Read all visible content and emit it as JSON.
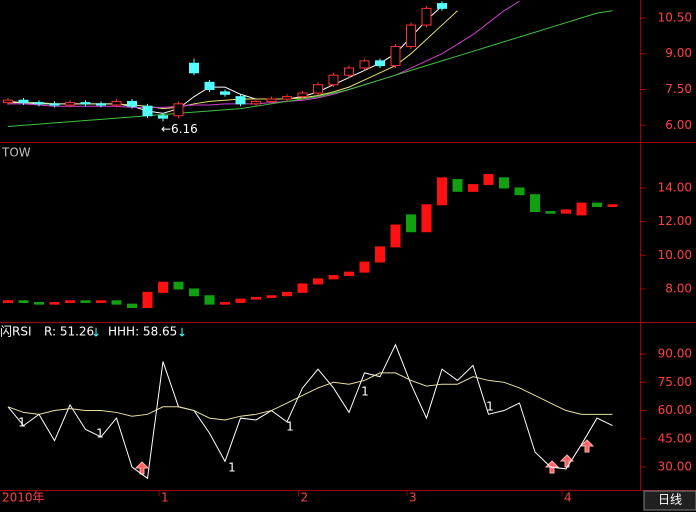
{
  "chart_data": [
    {
      "type": "candlestick",
      "up_color": "#ff3232",
      "down_color": "#54ffff",
      "open": [
        6.95,
        7.05,
        6.95,
        6.9,
        6.85,
        6.95,
        6.9,
        6.85,
        7.0,
        6.8,
        6.4,
        6.4,
        8.6,
        7.8,
        7.4,
        7.2,
        6.9,
        7.0,
        7.1,
        7.2,
        7.35,
        7.7,
        8.1,
        8.4,
        8.7,
        8.5,
        9.3,
        10.2,
        11.1,
        null,
        null,
        null,
        null,
        null,
        null,
        null,
        null,
        null,
        null,
        null
      ],
      "close": [
        7.05,
        6.95,
        6.9,
        6.85,
        6.95,
        6.9,
        6.85,
        7.0,
        6.8,
        6.4,
        6.3,
        6.9,
        8.2,
        7.5,
        7.3,
        6.9,
        7.0,
        7.1,
        7.2,
        7.35,
        7.7,
        8.1,
        8.4,
        8.7,
        8.5,
        9.3,
        10.2,
        10.9,
        10.9,
        null,
        null,
        null,
        null,
        null,
        null,
        null,
        null,
        null,
        null,
        null
      ],
      "high": [
        7.15,
        7.15,
        7.05,
        7.0,
        7.05,
        7.05,
        7.0,
        7.1,
        7.1,
        6.9,
        6.5,
        7.0,
        8.8,
        7.9,
        7.5,
        7.3,
        7.1,
        7.2,
        7.3,
        7.45,
        7.8,
        8.2,
        8.5,
        8.8,
        8.8,
        9.4,
        10.3,
        11.0,
        11.2,
        null,
        null,
        null,
        null,
        null,
        null,
        null,
        null,
        null,
        null,
        null
      ],
      "low": [
        6.85,
        6.85,
        6.8,
        6.75,
        6.75,
        6.8,
        6.75,
        6.75,
        6.7,
        6.3,
        6.16,
        6.3,
        8.1,
        7.4,
        7.2,
        6.8,
        6.8,
        6.9,
        7.0,
        7.1,
        7.25,
        7.6,
        8.0,
        8.3,
        8.4,
        8.4,
        9.2,
        10.1,
        10.8,
        null,
        null,
        null,
        null,
        null,
        null,
        null,
        null,
        null,
        null,
        null
      ],
      "series": [
        {
          "color": "#ffffff",
          "values": [
            6.95,
            6.95,
            6.9,
            6.9,
            6.9,
            6.9,
            6.9,
            6.9,
            6.8,
            6.6,
            6.5,
            6.7,
            7.2,
            7.6,
            7.6,
            7.3,
            7.1,
            7.1,
            7.1,
            7.2,
            7.4,
            7.7,
            8.0,
            8.3,
            8.6,
            9.0,
            9.7,
            10.4,
            11.0,
            null,
            null,
            null,
            null,
            null,
            null,
            null,
            null,
            null,
            null,
            null
          ]
        },
        {
          "color": "#e8e070",
          "values": [
            7.0,
            6.95,
            6.95,
            6.9,
            6.9,
            6.9,
            6.9,
            6.9,
            6.85,
            6.8,
            6.7,
            6.75,
            6.9,
            7.0,
            7.05,
            7.1,
            7.1,
            7.1,
            7.1,
            7.15,
            7.25,
            7.4,
            7.6,
            7.9,
            8.2,
            8.5,
            9.0,
            9.6,
            10.2,
            10.8,
            null,
            null,
            null,
            null,
            null,
            null,
            null,
            null,
            null,
            null
          ]
        },
        {
          "color": "#d040d0",
          "values": [
            6.9,
            6.9,
            6.85,
            6.8,
            6.8,
            6.8,
            6.8,
            6.8,
            6.75,
            6.75,
            6.75,
            6.8,
            6.85,
            6.85,
            6.9,
            6.9,
            6.9,
            6.95,
            7.0,
            7.05,
            7.15,
            7.3,
            7.5,
            7.7,
            7.9,
            8.1,
            8.4,
            8.7,
            9.0,
            9.4,
            9.8,
            10.3,
            10.8,
            11.2,
            null,
            null,
            null,
            null,
            null,
            null
          ]
        },
        {
          "color": "#40c040",
          "values": [
            5.95,
            6.0,
            6.05,
            6.1,
            6.15,
            6.2,
            6.25,
            6.3,
            6.35,
            6.4,
            6.45,
            6.5,
            6.55,
            6.6,
            6.65,
            6.7,
            6.8,
            6.9,
            7.0,
            7.1,
            7.2,
            7.35,
            7.5,
            7.7,
            7.9,
            8.1,
            8.3,
            8.5,
            8.7,
            8.9,
            9.1,
            9.3,
            9.5,
            9.7,
            9.9,
            10.1,
            10.3,
            10.5,
            10.7,
            10.8
          ]
        }
      ],
      "annotation": "←6.16",
      "ylim": [
        5.3,
        11.25
      ],
      "yticks": [
        {
          "value": 6,
          "label": "6.00"
        },
        {
          "value": 7.5,
          "label": "7.50"
        },
        {
          "value": 9,
          "label": "9.00"
        },
        {
          "value": 10.5,
          "label": "10.50"
        }
      ]
    },
    {
      "type": "candlestick",
      "title": "TOW",
      "up_color": "#ff1010",
      "down_color": "#10a010",
      "filled": true,
      "open": [
        7.2,
        7.3,
        7.2,
        7.1,
        7.2,
        7.3,
        7.2,
        7.3,
        7.1,
        6.9,
        7.8,
        8.4,
        8.0,
        7.6,
        7.1,
        7.2,
        7.4,
        7.5,
        7.6,
        7.8,
        8.3,
        8.6,
        8.8,
        9.0,
        9.6,
        10.5,
        12.4,
        11.4,
        13.0,
        14.5,
        13.8,
        14.2,
        14.6,
        14.0,
        13.6,
        12.6,
        12.5,
        12.4,
        13.1,
        12.9
      ],
      "close": [
        7.3,
        7.2,
        7.1,
        7.2,
        7.3,
        7.2,
        7.3,
        7.1,
        6.9,
        7.8,
        8.4,
        8.0,
        7.6,
        7.1,
        7.2,
        7.4,
        7.5,
        7.6,
        7.8,
        8.3,
        8.6,
        8.8,
        9.0,
        9.6,
        10.5,
        11.8,
        11.4,
        13.0,
        14.6,
        13.8,
        14.2,
        14.8,
        14.0,
        13.6,
        12.6,
        12.5,
        12.7,
        13.1,
        12.9,
        13.0
      ],
      "ylim": [
        6.04,
        16.67
      ],
      "yticks": [
        {
          "value": 8,
          "label": "8.00"
        },
        {
          "value": 10,
          "label": "10.00"
        },
        {
          "value": 12,
          "label": "12.00"
        },
        {
          "value": 14,
          "label": "14.00"
        }
      ]
    },
    {
      "type": "line",
      "title": "闪RSI",
      "readouts": [
        "R: 51.26",
        "HHH: 58.65"
      ],
      "categories": [
        "2010年",
        null,
        null,
        null,
        null,
        null,
        null,
        null,
        null,
        null,
        "1",
        null,
        null,
        null,
        null,
        null,
        null,
        null,
        null,
        "2",
        null,
        null,
        null,
        null,
        null,
        null,
        "3",
        null,
        null,
        null,
        null,
        null,
        null,
        null,
        null,
        null,
        "4",
        null,
        null,
        null
      ],
      "series": [
        {
          "color": "#ffffff",
          "values": [
            62,
            52,
            58,
            44,
            63,
            50,
            46,
            56,
            30,
            24,
            86,
            62,
            60,
            48,
            33,
            56,
            55,
            60,
            54,
            72,
            82,
            72,
            59,
            80,
            78,
            95,
            74,
            56,
            82,
            76,
            84,
            58,
            60,
            64,
            38,
            30,
            29,
            42,
            56,
            52
          ]
        },
        {
          "color": "#e8e0a0",
          "values": [
            62,
            59,
            58,
            60,
            61,
            60,
            60,
            59,
            57,
            58,
            62,
            62,
            60,
            56,
            55,
            57,
            58,
            60,
            64,
            68,
            72,
            75,
            74,
            76,
            80,
            80,
            76,
            73,
            74,
            74,
            78,
            76,
            75,
            72,
            68,
            64,
            60,
            58,
            58,
            58
          ]
        }
      ],
      "annotations": [
        "1",
        "1",
        "1",
        "1",
        "1",
        "1"
      ],
      "ylim": [
        17.8,
        106.5
      ],
      "yticks": [
        {
          "value": 30,
          "label": "30.00"
        },
        {
          "value": 45,
          "label": "45.00"
        },
        {
          "value": 60,
          "label": "60.00"
        },
        {
          "value": 75,
          "label": "75.00"
        },
        {
          "value": 90,
          "label": "90.00"
        }
      ],
      "period_button": "日线"
    }
  ]
}
